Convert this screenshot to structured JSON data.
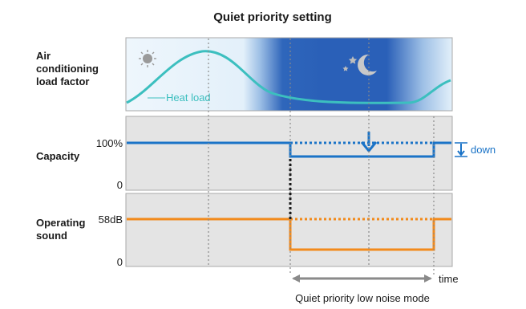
{
  "title": "Quiet priority setting",
  "panels": {
    "load": {
      "label_lines": [
        "Air",
        "conditioning",
        "load factor"
      ],
      "series_label": "Heat load"
    },
    "capacity": {
      "label": "Capacity",
      "tick_top": "100%",
      "tick_bottom": "0",
      "annotation": "down"
    },
    "sound": {
      "label_lines": [
        "Operating",
        "sound"
      ],
      "tick_top": "58dB",
      "tick_bottom": "0"
    }
  },
  "axis": {
    "time_label": "time",
    "mode_caption": "Quiet priority low noise mode"
  },
  "icons": {
    "day": "sun-icon",
    "night": "moon-and-stars-icon"
  },
  "colors": {
    "heat_load": "#3cbfbf",
    "capacity": "#1a73c7",
    "sound": "#f28a1c",
    "panel_bg": "#e4e4e4",
    "night_blue": "#2a60b8"
  }
}
